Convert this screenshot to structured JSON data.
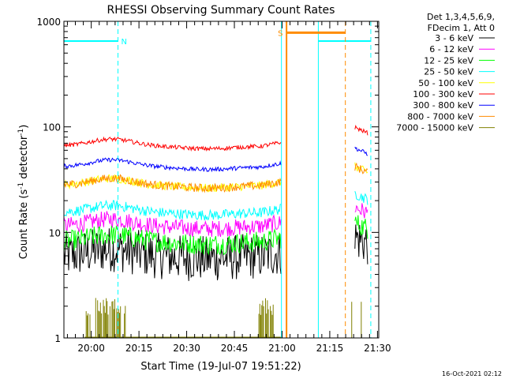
{
  "chart_data": {
    "type": "line",
    "title": "RHESSI Observing Summary Count Rates",
    "xlabel": "Start Time (19-Jul-07 19:51:22)",
    "ylabel": "Count Rate (s",
    "ylabel_sup1": "-1",
    "ylabel_mid": " detector",
    "ylabel_sup2": "-1",
    "ylabel_end": ")",
    "y_scale": "log",
    "ylim": [
      1,
      1000
    ],
    "x_range_minutes_after_19h51m22s": [
      0,
      99
    ],
    "x_ticks": [
      {
        "label": "20:00",
        "t": 8.6
      },
      {
        "label": "20:15",
        "t": 23.6
      },
      {
        "label": "20:30",
        "t": 38.6
      },
      {
        "label": "20:45",
        "t": 53.6
      },
      {
        "label": "21:00",
        "t": 68.6
      },
      {
        "label": "21:15",
        "t": 83.6
      },
      {
        "label": "21:30",
        "t": 98.6
      }
    ],
    "y_ticks": [
      {
        "label": "1",
        "v": 1
      },
      {
        "label": "10",
        "v": 10
      },
      {
        "label": "100",
        "v": 100
      },
      {
        "label": "1000",
        "v": 1000
      }
    ],
    "legend_header": [
      "Det 1,3,4,5,6,9,",
      "FDecim 1, Att 0"
    ],
    "series": [
      {
        "name": "3 - 6 keV",
        "color": "#000000",
        "base": 6,
        "scatter": 0.22
      },
      {
        "name": "6 - 12 keV",
        "color": "#ff00ff",
        "base": 11.5,
        "scatter": 0.08
      },
      {
        "name": "12 - 25 keV",
        "color": "#00ff00",
        "base": 8.2,
        "scatter": 0.1
      },
      {
        "name": "25 - 50 keV",
        "color": "#00ffff",
        "base": 15.5,
        "scatter": 0.05
      },
      {
        "name": "50 - 100 keV",
        "color": "#ffff00",
        "base": 28,
        "scatter": 0.04
      },
      {
        "name": "100 - 300 keV",
        "color": "#ff0000",
        "base": 66,
        "scatter": 0.02
      },
      {
        "name": "300 - 800 keV",
        "color": "#0000ff",
        "base": 42,
        "scatter": 0.02
      },
      {
        "name": "800 - 7000 keV",
        "color": "#ff8c00",
        "base": 28,
        "scatter": 0.04
      },
      {
        "name": "7000 - 15000 keV",
        "color": "#808000",
        "base": 1,
        "scatter": 0
      }
    ],
    "flags": [
      {
        "label": "N",
        "color": "#00ffff"
      },
      {
        "label": "S",
        "color": "#ff8c00"
      }
    ],
    "footer_date": "16-Oct-2021 02:12"
  }
}
